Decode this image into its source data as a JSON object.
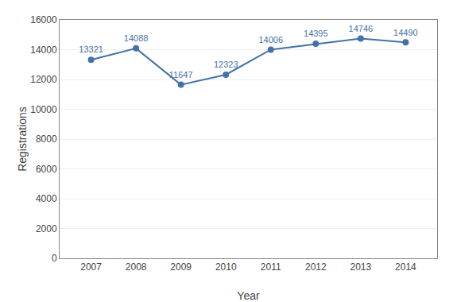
{
  "chart_data": {
    "type": "line",
    "x": [
      2007,
      2008,
      2009,
      2010,
      2011,
      2012,
      2013,
      2014
    ],
    "values": [
      13321,
      14088,
      11647,
      12323,
      14006,
      14395,
      14746,
      14490
    ],
    "color": "#4472a8",
    "marker": "circle",
    "xlabel": "Year",
    "ylabel": "Registrations",
    "xlim": [
      2006.3,
      2014.7
    ],
    "xticks": [
      2007,
      2008,
      2009,
      2010,
      2011,
      2012,
      2013,
      2014
    ],
    "ylim": [
      0,
      16000
    ],
    "yticks": [
      0,
      2000,
      4000,
      6000,
      8000,
      10000,
      12000,
      14000,
      16000
    ],
    "grid": "y",
    "data_labels": true
  }
}
